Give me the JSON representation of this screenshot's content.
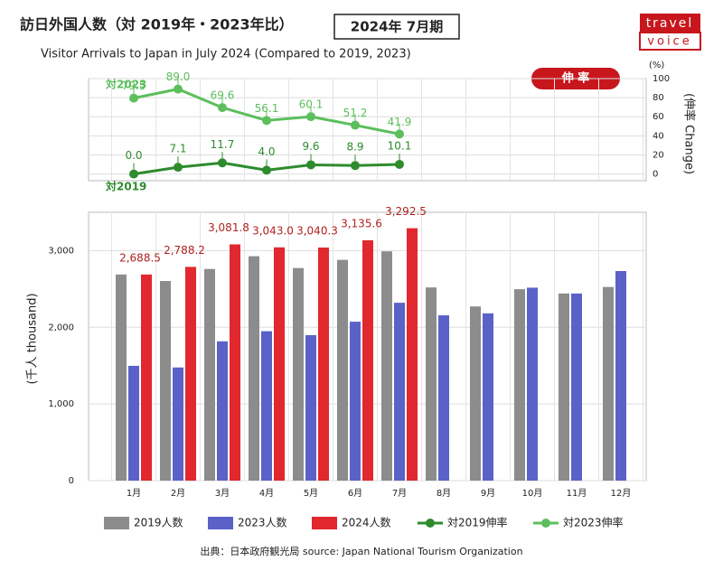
{
  "header": {
    "title": "訪日外国人数（対 2019年・2023年比）",
    "period": "2024年 7月期",
    "subtitle": "Visitor Arrivals to Japan in July 2024 (Compared to 2019, 2023)",
    "logo": [
      "travel",
      "voice"
    ]
  },
  "chart_data": [
    {
      "type": "line",
      "badge": "伸 率",
      "y_unit": "(%)",
      "y_label": "(伸率 Change)",
      "annotations": [
        "対2023",
        "対2019"
      ],
      "ylim": [
        -7,
        100
      ],
      "yticks": [
        0,
        20,
        40,
        60,
        80,
        100
      ],
      "grid": true,
      "series": [
        {
          "name": "対2019伸率",
          "color": "#2e8b2e",
          "values": [
            0,
            7.1,
            11.7,
            4,
            9.6,
            8.9,
            10.1
          ],
          "value_labels": [
            "0.0",
            "7.1",
            "11.7",
            "4.0",
            "9.6",
            "8.9",
            "10.1"
          ]
        },
        {
          "name": "対2023伸率",
          "color": "#5cbf5c",
          "values": [
            79.5,
            89,
            69.6,
            56.1,
            60.1,
            51.2,
            41.9
          ],
          "value_labels": [
            "79.5",
            "89.0",
            "69.6",
            "56.1",
            "60.1",
            "51.2",
            "41.9"
          ]
        }
      ]
    },
    {
      "type": "bar",
      "y_label": "(千人 thousand)",
      "categories": [
        "1月",
        "2月",
        "3月",
        "4月",
        "5月",
        "6月",
        "7月",
        "8月",
        "9月",
        "10月",
        "11月",
        "12月"
      ],
      "ylim": [
        0,
        3500
      ],
      "yticks": [
        0,
        {
          "value": 1000,
          "label": "1,000"
        },
        {
          "value": 2000,
          "label": "2,000"
        },
        {
          "value": 3000,
          "label": "3,000"
        }
      ],
      "grid": true,
      "series": [
        {
          "name": "2019人数",
          "color": "#8c8c8c",
          "values": [
            2689,
            2604,
            2761,
            2927,
            2773,
            2880,
            2991,
            2520,
            2272,
            2497,
            2441,
            2526
          ]
        },
        {
          "name": "2023人数",
          "color": "#5a62c8",
          "values": [
            1497,
            1476,
            1817,
            1949,
            1898,
            2073,
            2320,
            2156,
            2182,
            2517,
            2441,
            2734
          ]
        },
        {
          "name": "2024人数",
          "color": "#e0282e",
          "values": [
            2688.5,
            2788.2,
            3081.8,
            3043,
            3040.3,
            3135.6,
            3292.5,
            null,
            null,
            null,
            null,
            null
          ],
          "value_labels": [
            "2,688.5",
            "2,788.2",
            "3,081.8",
            "3,043.0",
            "3,040.3",
            "3,135.6",
            "3,292.5",
            null,
            null,
            null,
            null,
            null
          ]
        }
      ]
    }
  ],
  "source": "出典：日本政府観光局  source: Japan National Tourism Organization"
}
